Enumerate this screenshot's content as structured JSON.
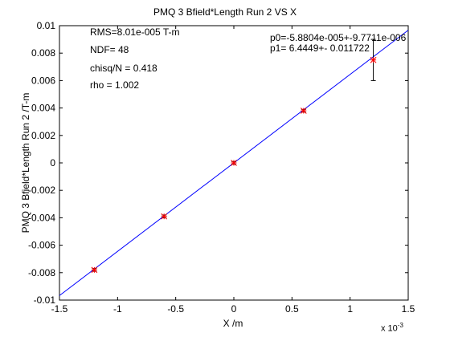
{
  "chart_data": {
    "type": "scatter",
    "title": "PMQ 3 Bfield*Length Run 2 VS X",
    "xlabel": "X /m",
    "ylabel": "PMQ 3 Bfield*Length Run 2 /T-m",
    "x_exponent_base": "x 10",
    "x_exponent_power": "-3",
    "xlim": [
      -1.5,
      1.5
    ],
    "ylim": [
      -0.01,
      0.01
    ],
    "x_ticks": [
      -1.5,
      -1,
      -0.5,
      0,
      0.5,
      1,
      1.5
    ],
    "x_tick_labels": [
      "-1.5",
      "-1",
      "-0.5",
      "0",
      "0.5",
      "1",
      "1.5"
    ],
    "y_ticks": [
      -0.01,
      -0.008,
      -0.006,
      -0.004,
      -0.002,
      0,
      0.002,
      0.004,
      0.006,
      0.008,
      0.01
    ],
    "y_tick_labels": [
      "-0.01",
      "-0.008",
      "-0.006",
      "-0.004",
      "-0.002",
      "0",
      "0.002",
      "0.004",
      "0.006",
      "0.008",
      "0.01"
    ],
    "grid": false,
    "series": [
      {
        "points": [
          {
            "x": -1.2,
            "y": -0.0078,
            "err": 0.0001
          },
          {
            "x": -0.6,
            "y": -0.0039,
            "err": 0.0001
          },
          {
            "x": 0.0,
            "y": 0.0,
            "err": 0.0001
          },
          {
            "x": 0.6,
            "y": 0.0038,
            "err": 0.0001
          },
          {
            "x": 1.2,
            "y": 0.0075,
            "err": 0.0015
          }
        ],
        "color": "#ff0000"
      },
      {
        "type": "line",
        "x": [
          -1.5,
          1.5
        ],
        "y": [
          -0.00967,
          0.00967
        ],
        "color": "#0000ff"
      }
    ],
    "annotations": {
      "rms": "RMS=8.01e-005 T-m",
      "ndf": "NDF=    48",
      "chisq": "chisq/N = 0.418",
      "rho": "rho     =  1.002",
      "p0": "p0=-5.8804e-005+-9.7711e-006",
      "p1": "p1=   6.4449+- 0.011722"
    }
  }
}
